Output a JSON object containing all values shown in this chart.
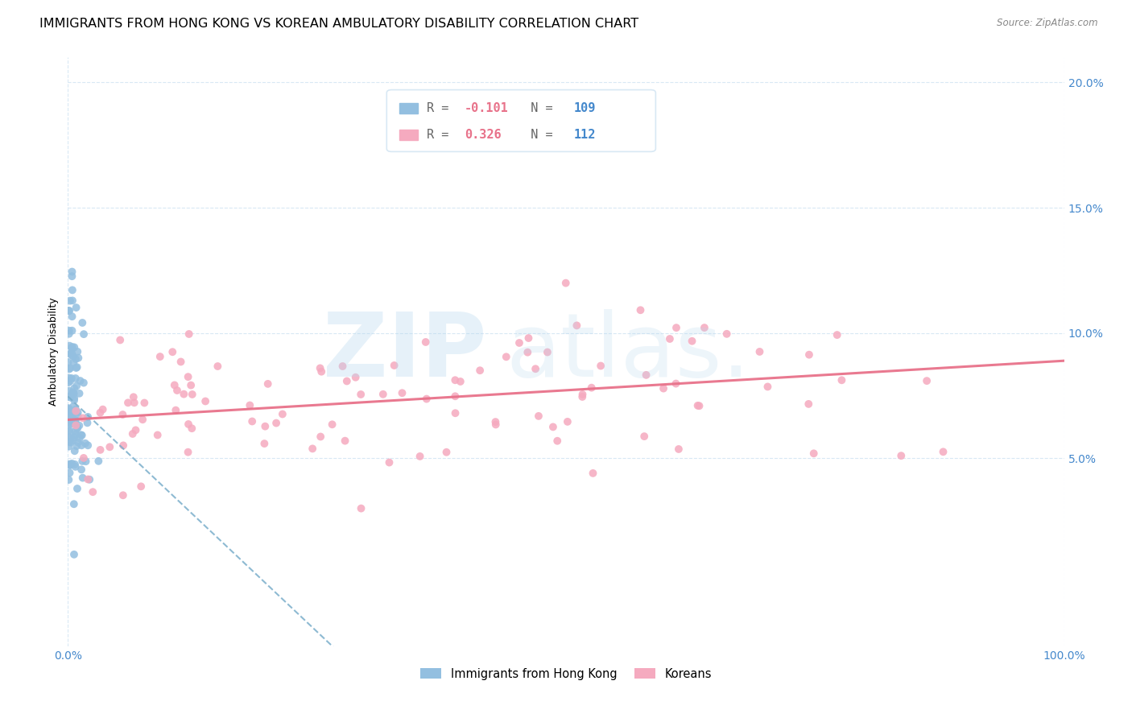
{
  "title": "IMMIGRANTS FROM HONG KONG VS KOREAN AMBULATORY DISABILITY CORRELATION CHART",
  "source": "Source: ZipAtlas.com",
  "ylabel": "Ambulatory Disability",
  "xlim": [
    0.0,
    1.0
  ],
  "ylim": [
    -0.025,
    0.21
  ],
  "xticks": [
    0.0,
    1.0
  ],
  "xtick_labels": [
    "0.0%",
    "100.0%"
  ],
  "yticks": [
    0.05,
    0.1,
    0.15,
    0.2
  ],
  "ytick_labels": [
    "5.0%",
    "10.0%",
    "15.0%",
    "20.0%"
  ],
  "series1_color": "#93BFE0",
  "series2_color": "#F5AABF",
  "series1_label": "Immigrants from Hong Kong",
  "series2_label": "Koreans",
  "series1_R": -0.101,
  "series1_N": 109,
  "series2_R": 0.326,
  "series2_N": 112,
  "trend1_color": "#7AAECB",
  "trend2_color": "#E8728A",
  "grid_color": "#D8E8F4",
  "tick_color": "#4488CC",
  "r_color": "#E8728A",
  "n_color": "#4488CC",
  "title_fontsize": 11.5,
  "axis_label_fontsize": 9,
  "tick_fontsize": 10,
  "legend_fontsize": 11
}
